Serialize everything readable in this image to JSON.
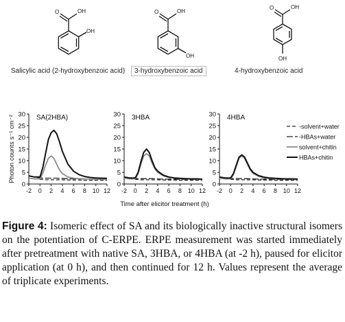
{
  "compounds": [
    {
      "name": "Salicylic acid (2-hydroxybenzoic acid)",
      "oh_label": "OH",
      "acid_label": "OH",
      "o_label": "O"
    },
    {
      "name": "3-hydroxybenzoic acid",
      "oh_label": "OH",
      "acid_label": "OH",
      "o_label": "O"
    },
    {
      "name": "4-hydroxybenzoic acid",
      "oh_label": "OH",
      "acid_label": "OH",
      "o_label": "O"
    }
  ],
  "figure": {
    "label": "Figure 4:",
    "caption": " Isomeric effect of SA and its biologically inactive structural isomers on the potentiation of C-ERPE. ERPE measurement was started immediately after pretreatment with native SA, 3HBA, or 4HBA (at -2 h), paused for elicitor application (at 0 h), and then continued for 12 h. Values represent the average of triplicate experiments."
  },
  "chart_data": {
    "type": "line",
    "ylabel": "Photon counts s⁻¹ cm⁻²",
    "xlabel": "Time after elicitor treatment (h)",
    "xlim": [
      -2,
      12
    ],
    "ylim": [
      0,
      30
    ],
    "xticks": [
      "-2",
      "0",
      "2",
      "4",
      "6",
      "8",
      "10",
      "12"
    ],
    "yticks": [
      "0",
      "5",
      "10",
      "15",
      "20",
      "25",
      "30"
    ],
    "grid": false,
    "legend_position": "right",
    "series_styles": [
      {
        "name": "solvent+water",
        "color": "#222222",
        "dash": "5,3",
        "width": 1.3
      },
      {
        "name": "HBAs+water",
        "color": "#222222",
        "dash": "9,3",
        "width": 1.3
      },
      {
        "name": "solvent+chitin",
        "color": "#8c8c8c",
        "dash": "",
        "width": 1.8
      },
      {
        "name": "HBAs+chitin",
        "color": "#111111",
        "dash": "",
        "width": 2.0
      }
    ],
    "panels": [
      {
        "title": "SA(2HBA)",
        "x": [
          -2,
          -1,
          0,
          0.5,
          1,
          1.5,
          2,
          2.5,
          3,
          3.5,
          4,
          5,
          6,
          7,
          8,
          9,
          10,
          11,
          12
        ],
        "series": [
          {
            "name": "solvent+water",
            "values": [
              2.5,
              2.2,
              2.0,
              1.9,
              1.8,
              1.8,
              1.8,
              1.8,
              1.8,
              1.8,
              1.8,
              1.7,
              1.7,
              1.7,
              1.6,
              1.6,
              1.6,
              1.6,
              1.6
            ]
          },
          {
            "name": "HBAs+water",
            "values": [
              3.5,
              3.0,
              2.6,
              2.5,
              2.5,
              2.5,
              2.5,
              2.5,
              2.5,
              2.4,
              2.4,
              2.3,
              2.2,
              2.2,
              2.1,
              2.1,
              2.0,
              2.0,
              2.0
            ]
          },
          {
            "name": "solvent+chitin",
            "values": [
              2.5,
              2.2,
              2.2,
              4.5,
              8.0,
              11.0,
              12.0,
              11.0,
              8.5,
              6.0,
              4.5,
              3.0,
              2.5,
              2.3,
              2.2,
              2.1,
              2.0,
              2.0,
              2.0
            ]
          },
          {
            "name": "HBAs+chitin",
            "values": [
              3.5,
              3.0,
              3.0,
              7.0,
              13.0,
              19.0,
              22.0,
              23.0,
              21.5,
              18.0,
              14.0,
              8.5,
              5.5,
              4.0,
              3.2,
              2.8,
              2.6,
              2.5,
              2.4
            ]
          }
        ]
      },
      {
        "title": "3HBA",
        "x": [
          -2,
          -1,
          0,
          0.5,
          1,
          1.5,
          2,
          2.5,
          3,
          3.5,
          4,
          5,
          6,
          7,
          8,
          9,
          10,
          11,
          12
        ],
        "series": [
          {
            "name": "solvent+water",
            "values": [
              2.5,
              2.2,
              2.0,
              1.9,
              1.8,
              1.8,
              1.8,
              1.8,
              1.8,
              1.8,
              1.8,
              1.7,
              1.7,
              1.7,
              1.6,
              1.6,
              1.6,
              1.6,
              1.6
            ]
          },
          {
            "name": "HBAs+water",
            "values": [
              3.0,
              2.6,
              2.4,
              2.3,
              2.3,
              2.3,
              2.3,
              2.3,
              2.3,
              2.2,
              2.2,
              2.1,
              2.1,
              2.0,
              2.0,
              2.0,
              1.9,
              1.9,
              1.9
            ]
          },
          {
            "name": "solvent+chitin",
            "values": [
              2.5,
              2.2,
              2.2,
              4.5,
              8.5,
              12.0,
              13.0,
              12.0,
              9.0,
              6.5,
              5.0,
              3.5,
              2.8,
              2.5,
              2.3,
              2.2,
              2.1,
              2.1,
              2.0
            ]
          },
          {
            "name": "HBAs+chitin",
            "values": [
              3.0,
              2.6,
              2.6,
              5.0,
              9.5,
              13.5,
              15.0,
              13.5,
              10.0,
              7.0,
              5.5,
              3.8,
              3.0,
              2.6,
              2.4,
              2.3,
              2.2,
              2.2,
              2.1
            ]
          }
        ]
      },
      {
        "title": "4HBA",
        "x": [
          -2,
          -1,
          0,
          0.5,
          1,
          1.5,
          2,
          2.5,
          3,
          3.5,
          4,
          5,
          6,
          7,
          8,
          9,
          10,
          11,
          12
        ],
        "series": [
          {
            "name": "solvent+water",
            "values": [
              2.5,
              2.2,
              2.0,
              1.9,
              1.8,
              1.8,
              1.8,
              1.8,
              1.8,
              1.8,
              1.8,
              1.7,
              1.7,
              1.7,
              1.6,
              1.6,
              1.6,
              1.6,
              1.6
            ]
          },
          {
            "name": "HBAs+water",
            "values": [
              3.0,
              2.6,
              2.4,
              2.3,
              2.3,
              2.3,
              2.3,
              2.3,
              2.3,
              2.2,
              2.2,
              2.1,
              2.1,
              2.0,
              2.0,
              2.0,
              1.9,
              1.9,
              1.9
            ]
          },
          {
            "name": "solvent+chitin",
            "values": [
              2.5,
              2.2,
              2.2,
              4.0,
              7.5,
              11.0,
              12.0,
              11.0,
              8.5,
              6.0,
              4.5,
              3.3,
              2.7,
              2.4,
              2.3,
              2.2,
              2.1,
              2.1,
              2.0
            ]
          },
          {
            "name": "HBAs+chitin",
            "values": [
              3.0,
              2.6,
              2.6,
              4.5,
              8.0,
              11.5,
              12.5,
              11.5,
              9.0,
              6.5,
              5.0,
              3.6,
              2.9,
              2.6,
              2.4,
              2.3,
              2.2,
              2.2,
              2.1
            ]
          }
        ]
      }
    ],
    "legend": [
      "-solvent+water",
      "-HBAs+water",
      "solvent+chitin",
      "HBAs+chitin"
    ]
  }
}
